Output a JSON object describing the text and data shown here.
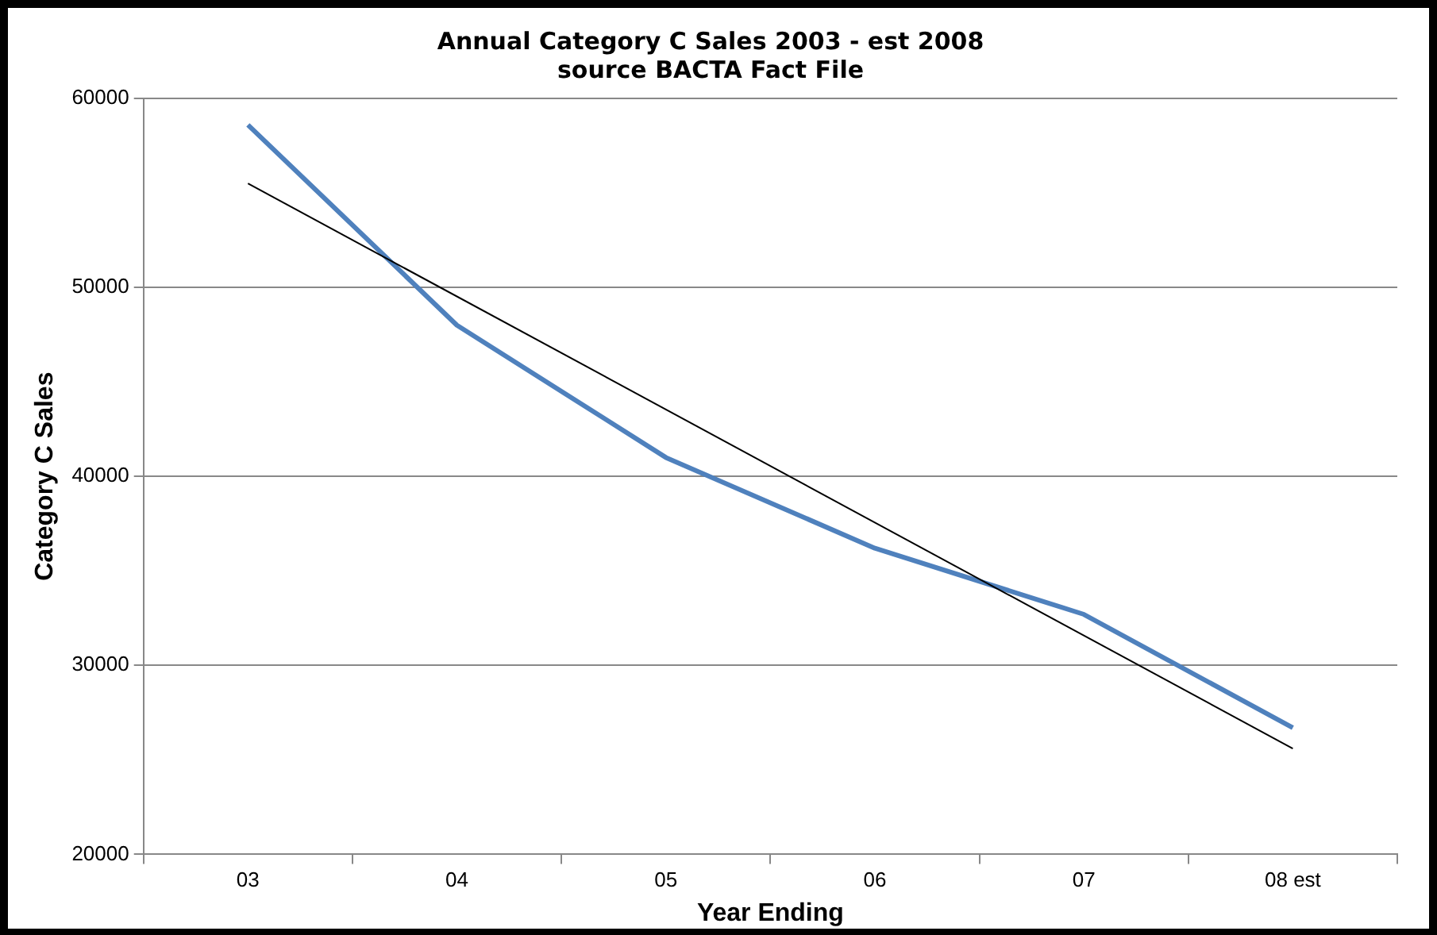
{
  "chart_data": {
    "type": "line",
    "title": "Annual Category C Sales 2003 - est 2008",
    "subtitle": "source BACTA Fact File",
    "xlabel": "Year Ending",
    "ylabel": "Category C Sales",
    "categories": [
      "03",
      "04",
      "05",
      "06",
      "07",
      "08 est"
    ],
    "series": [
      {
        "color": "#4f81bd",
        "values": [
          58600,
          48000,
          41000,
          36200,
          32700,
          26700
        ]
      },
      {
        "type": "line",
        "color": "#000000",
        "x": [
          "03",
          "08 est"
        ],
        "values": [
          55500,
          25600
        ]
      }
    ],
    "ylim": [
      20000,
      60000
    ],
    "yticks": [
      20000,
      30000,
      40000,
      50000,
      60000
    ],
    "grid": "y",
    "legend": false,
    "marker": "none",
    "line_style": "solid"
  }
}
